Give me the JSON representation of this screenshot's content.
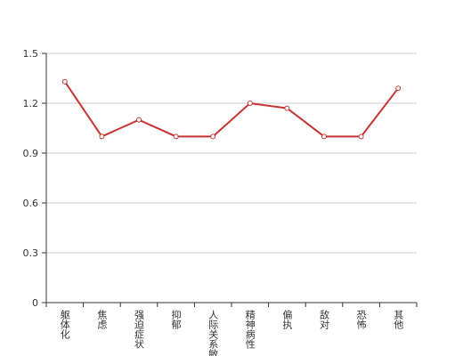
{
  "chart_data": {
    "type": "line",
    "categories": [
      "躯体化",
      "焦虑",
      "强迫症状",
      "抑郁",
      "人际关系敏感",
      "精神病性",
      "偏执",
      "敌对",
      "恐怖",
      "其他"
    ],
    "values": [
      1.33,
      1.0,
      1.1,
      1.0,
      1.0,
      1.2,
      1.17,
      1.0,
      1.0,
      1.29
    ],
    "color": "#c23531",
    "ylim": [
      0,
      1.5
    ],
    "yticks": [
      0,
      0.3,
      0.6,
      0.9,
      1.2,
      1.5
    ],
    "grid": true
  }
}
